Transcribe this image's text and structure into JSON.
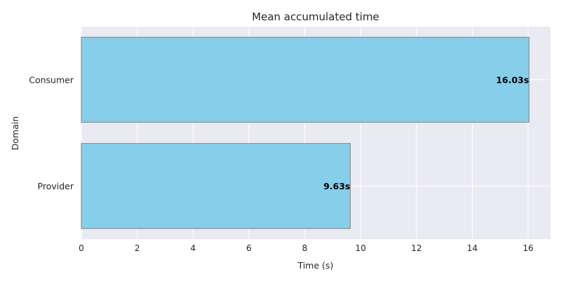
{
  "chart_data": {
    "type": "bar",
    "orientation": "horizontal",
    "title": "Mean accumulated time",
    "xlabel": "Time (s)",
    "ylabel": "Domain",
    "categories": [
      "Consumer",
      "Provider"
    ],
    "values": [
      16.03,
      9.63
    ],
    "value_labels": [
      "16.03s",
      "9.63s"
    ],
    "xlim": [
      0,
      16.8
    ],
    "xticks": [
      "0",
      "2",
      "4",
      "6",
      "8",
      "10",
      "12",
      "14",
      "16"
    ],
    "grid": true,
    "colors": {
      "bar_fill": "#87CEEB",
      "bar_edge": "#808080",
      "plot_bg": "#EAEAF2",
      "grid": "#ffffff",
      "text": "#262626"
    }
  }
}
